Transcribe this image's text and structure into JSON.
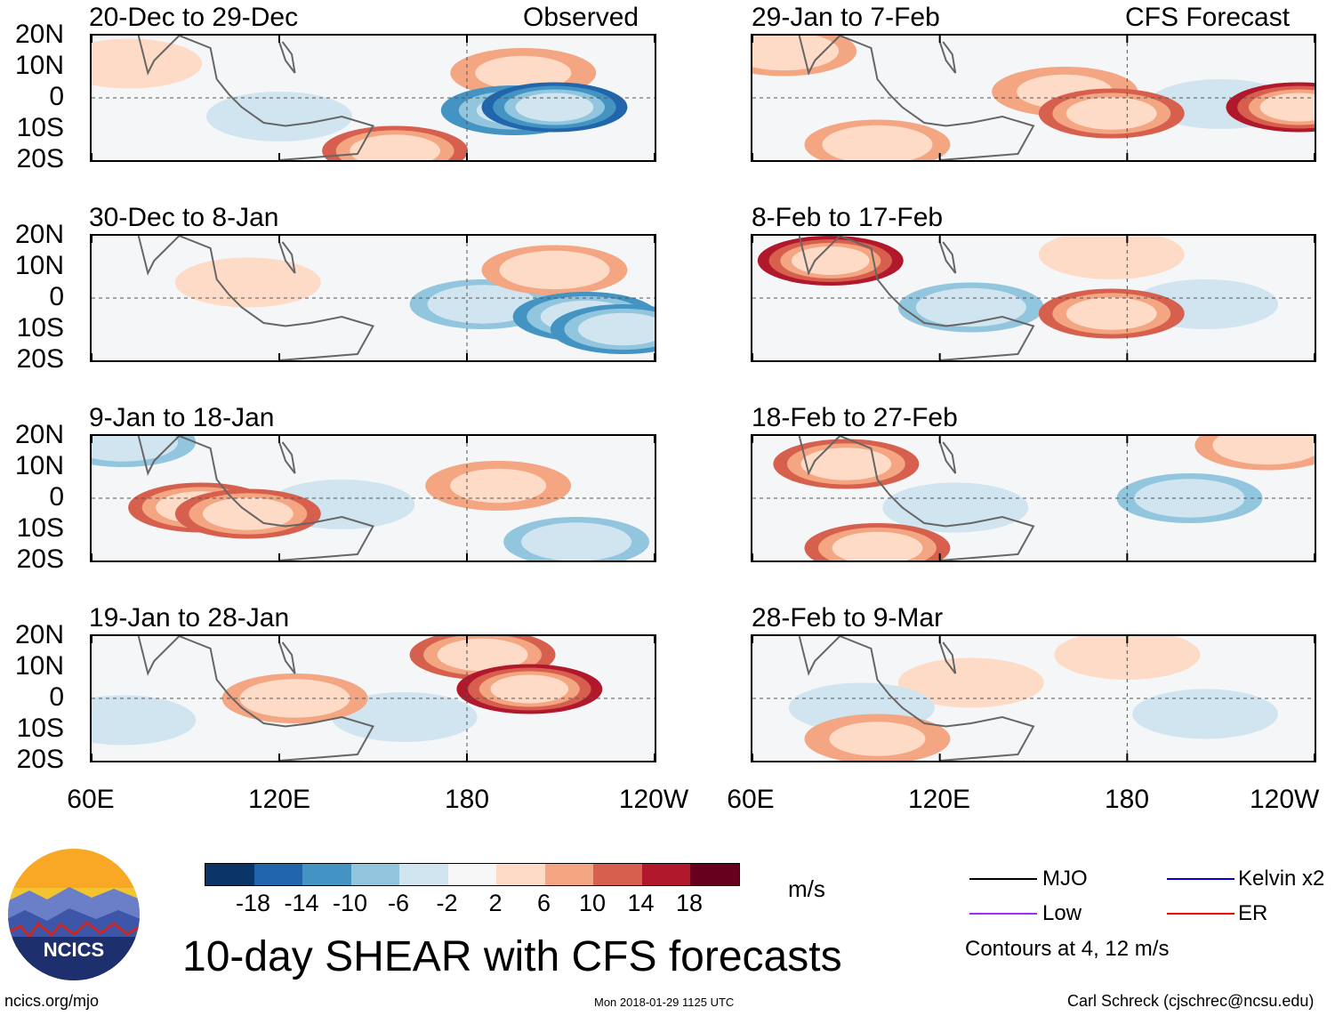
{
  "title": "10-day SHEAR with CFS forecasts",
  "column_labels": {
    "observed": "Observed",
    "forecast": "CFS Forecast"
  },
  "panels": [
    {
      "title": "20-Dec to 29-Dec",
      "source": "Observed"
    },
    {
      "title": "30-Dec to 8-Jan",
      "source": "Observed"
    },
    {
      "title": "9-Jan to 18-Jan",
      "source": "Observed"
    },
    {
      "title": "19-Jan to 28-Jan",
      "source": "Observed"
    },
    {
      "title": "29-Jan to 7-Feb",
      "source": "CFS Forecast"
    },
    {
      "title": "8-Feb to 17-Feb",
      "source": "CFS Forecast"
    },
    {
      "title": "18-Feb to 27-Feb",
      "source": "CFS Forecast"
    },
    {
      "title": "28-Feb to 9-Mar",
      "source": "CFS Forecast"
    }
  ],
  "y_labels": [
    "20N",
    "10N",
    "0",
    "10S",
    "20S"
  ],
  "x_labels": [
    "60E",
    "120E",
    "180",
    "120W"
  ],
  "colorbar": {
    "unit": "m/s",
    "ticks": [
      "-18",
      "-14",
      "-10",
      "-6",
      "-2",
      "2",
      "6",
      "10",
      "14",
      "18"
    ],
    "colors": [
      "#0b3567",
      "#2166ac",
      "#4393c3",
      "#92c5de",
      "#d1e5f0",
      "#f7f7f7",
      "#fddbc7",
      "#f4a582",
      "#d6604d",
      "#b2182b",
      "#67001f"
    ]
  },
  "legend": {
    "items": [
      {
        "label": "MJO",
        "color": "#000000"
      },
      {
        "label": "Kelvin x2",
        "color": "#0000dd"
      },
      {
        "label": "Low",
        "color": "#9b30ff"
      },
      {
        "label": "ER",
        "color": "#ee0000"
      }
    ],
    "note": "Contours at 4, 12 m/s"
  },
  "logo": {
    "text": "NCICS"
  },
  "footer": {
    "left": "ncics.org/mjo",
    "center": "Mon 2018-01-29 1125 UTC",
    "right": "Carl Schreck (cjschrec@ncsu.edu)"
  },
  "chart_data": {
    "type": "heatmap",
    "title": "10-day SHEAR with CFS forecasts",
    "x_range": [
      "60E",
      "120W"
    ],
    "y_range": [
      "20S",
      "20N"
    ],
    "xlabel": "",
    "ylabel": "",
    "color_unit": "m/s",
    "color_levels": [
      -18,
      -14,
      -10,
      -6,
      -2,
      2,
      6,
      10,
      14,
      18
    ],
    "panels": [
      {
        "title": "20-Dec to 29-Dec",
        "source": "Observed",
        "blobs": [
          {
            "lon": 208,
            "lat": -3,
            "value": -18
          },
          {
            "lon": 195,
            "lat": -4,
            "value": -12
          },
          {
            "lon": 120,
            "lat": -6,
            "value": -6
          },
          {
            "lon": 157,
            "lat": -17,
            "value": 14
          },
          {
            "lon": 198,
            "lat": 8,
            "value": 8
          },
          {
            "lon": 72,
            "lat": 11,
            "value": 6
          }
        ]
      },
      {
        "title": "30-Dec to 8-Jan",
        "source": "Observed",
        "blobs": [
          {
            "lon": 218,
            "lat": -6,
            "value": -14
          },
          {
            "lon": 185,
            "lat": -2,
            "value": -10
          },
          {
            "lon": 208,
            "lat": 9,
            "value": 10
          },
          {
            "lon": 110,
            "lat": 5,
            "value": 6
          },
          {
            "lon": 230,
            "lat": -10,
            "value": -14
          }
        ]
      },
      {
        "title": "9-Jan to 18-Jan",
        "source": "Observed",
        "blobs": [
          {
            "lon": 95,
            "lat": -3,
            "value": 14
          },
          {
            "lon": 110,
            "lat": -5,
            "value": 14
          },
          {
            "lon": 70,
            "lat": 18,
            "value": -10
          },
          {
            "lon": 190,
            "lat": 4,
            "value": 8
          },
          {
            "lon": 215,
            "lat": -14,
            "value": -10
          },
          {
            "lon": 140,
            "lat": -2,
            "value": -6
          }
        ]
      },
      {
        "title": "19-Jan to 28-Jan",
        "source": "Observed",
        "blobs": [
          {
            "lon": 200,
            "lat": 3,
            "value": 18
          },
          {
            "lon": 185,
            "lat": 14,
            "value": 14
          },
          {
            "lon": 125,
            "lat": 0,
            "value": 10
          },
          {
            "lon": 70,
            "lat": -7,
            "value": -6
          },
          {
            "lon": 160,
            "lat": -6,
            "value": -6
          }
        ]
      },
      {
        "title": "29-Jan to 7-Feb",
        "source": "CFS Forecast",
        "blobs": [
          {
            "lon": 235,
            "lat": -3,
            "value": 18
          },
          {
            "lon": 175,
            "lat": -5,
            "value": 14
          },
          {
            "lon": 70,
            "lat": 15,
            "value": 10
          },
          {
            "lon": 160,
            "lat": 2,
            "value": 8
          },
          {
            "lon": 210,
            "lat": -2,
            "value": -2
          },
          {
            "lon": 100,
            "lat": -15,
            "value": 10
          }
        ]
      },
      {
        "title": "8-Feb to 17-Feb",
        "source": "CFS Forecast",
        "blobs": [
          {
            "lon": 85,
            "lat": 12,
            "value": 18
          },
          {
            "lon": 175,
            "lat": -5,
            "value": 14
          },
          {
            "lon": 205,
            "lat": -2,
            "value": -6
          },
          {
            "lon": 130,
            "lat": -3,
            "value": -10
          },
          {
            "lon": 175,
            "lat": 14,
            "value": 6
          }
        ]
      },
      {
        "title": "18-Feb to 27-Feb",
        "source": "CFS Forecast",
        "blobs": [
          {
            "lon": 90,
            "lat": 11,
            "value": 14
          },
          {
            "lon": 225,
            "lat": 17,
            "value": 10
          },
          {
            "lon": 200,
            "lat": 0,
            "value": -10
          },
          {
            "lon": 125,
            "lat": -3,
            "value": -6
          },
          {
            "lon": 100,
            "lat": -16,
            "value": 14
          }
        ]
      },
      {
        "title": "28-Feb to 9-Mar",
        "source": "CFS Forecast",
        "blobs": [
          {
            "lon": 100,
            "lat": -13,
            "value": 8
          },
          {
            "lon": 180,
            "lat": 14,
            "value": 6
          },
          {
            "lon": 95,
            "lat": -3,
            "value": -6
          },
          {
            "lon": 205,
            "lat": -5,
            "value": -6
          },
          {
            "lon": 130,
            "lat": 5,
            "value": 4
          }
        ]
      }
    ]
  }
}
